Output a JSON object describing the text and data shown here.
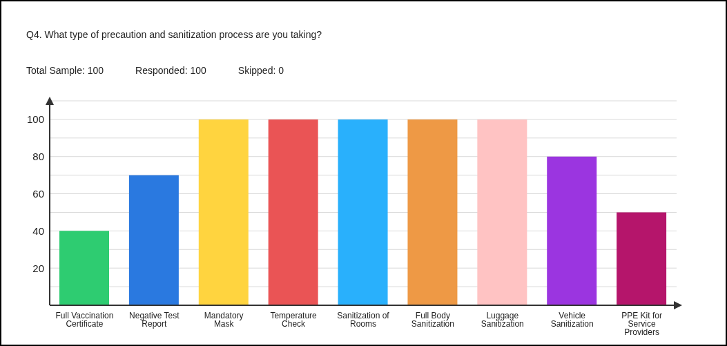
{
  "chart_data": {
    "type": "bar",
    "title": "Q4. What type of precaution and sanitization process are you taking?",
    "annotations": [
      "Total Sample: 100",
      "Responded: 100",
      "Skipped: 0"
    ],
    "categories": [
      "Full Vaccination Certificate",
      "Negative Test Report",
      "Mandatory Mask",
      "Temperature Check",
      "Sanitization of Rooms",
      "Full Body Sanitization",
      "Luggage Sanitization",
      "Vehicle Sanitization",
      "PPE Kit for Service Providers"
    ],
    "values": [
      40,
      70,
      100,
      100,
      100,
      100,
      100,
      80,
      50
    ],
    "colors": [
      "#2ecc71",
      "#2a79e0",
      "#ffd43f",
      "#ea5455",
      "#29b0fc",
      "#ee9945",
      "#ffc3c3",
      "#9b35e0",
      "#b5156b"
    ],
    "ylim": [
      0,
      110
    ],
    "yticks": [
      {
        "value": 10,
        "label": null
      },
      20,
      {
        "value": 30,
        "label": null
      },
      40,
      {
        "value": 50,
        "label": null
      },
      60,
      {
        "value": 70,
        "label": null
      },
      80,
      {
        "value": 90,
        "label": null
      },
      100
    ],
    "grid": "y",
    "legend": false
  }
}
